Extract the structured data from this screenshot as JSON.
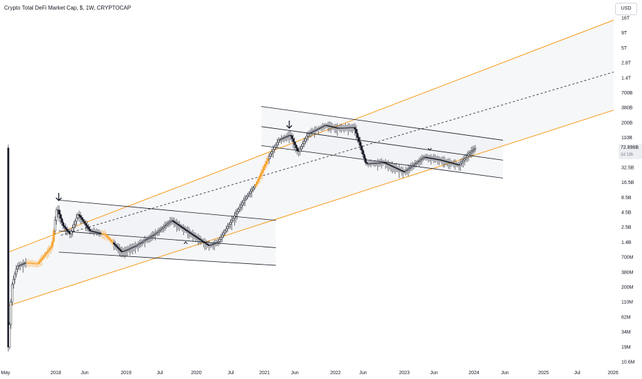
{
  "header": {
    "title": "Crypto Total DeFi Market Cap, $, 1W, CRYPTOCAP",
    "currency_button": "USD"
  },
  "price_label": {
    "value": "72.896B",
    "countdown": "2d 13h"
  },
  "colors": {
    "channel": "#f7a128",
    "bar": "#131722",
    "band_fill": "#eef0f4",
    "highlight": "#f7a128"
  },
  "chart_data": {
    "type": "candlestick",
    "title": "Crypto Total DeFi Market Cap, $, 1W, CRYPTOCAP",
    "y_scale": "log",
    "y_tick_labels": [
      "16T",
      "9T",
      "5T",
      "2.8T",
      "1.4T",
      "700B",
      "380B",
      "200B",
      "110B",
      "62.5B",
      "32.5B",
      "16.5B",
      "8.5B",
      "4.5B",
      "2.5B",
      "1.4B",
      "700M",
      "380M",
      "200M",
      "110M",
      "62M",
      "34M",
      "19M",
      "10.6M"
    ],
    "x_tick_labels": [
      "May",
      "2018",
      "Jun",
      "2019",
      "Jul",
      "2020",
      "Jul",
      "2021",
      "Jun",
      "2022",
      "Jun",
      "2023",
      "Jun",
      "2024",
      "Jun",
      "2025",
      "Jul",
      "2026"
    ],
    "last_value": "72.896B",
    "price_series": [
      [
        "2017-05-01",
        0.02
      ],
      [
        "2017-05-20",
        0.25
      ],
      [
        "2017-06-15",
        0.55
      ],
      [
        "2017-08-01",
        0.65
      ],
      [
        "2017-10-01",
        0.62
      ],
      [
        "2017-12-15",
        1.3
      ],
      [
        "2018-01-10",
        6.4
      ],
      [
        "2018-02-10",
        3.0
      ],
      [
        "2018-03-20",
        2.1
      ],
      [
        "2018-05-01",
        4.8
      ],
      [
        "2018-07-01",
        2.4
      ],
      [
        "2018-09-15",
        2.1
      ],
      [
        "2018-12-15",
        1.0
      ],
      [
        "2019-03-01",
        1.3
      ],
      [
        "2019-06-15",
        2.2
      ],
      [
        "2019-09-01",
        3.7
      ],
      [
        "2019-12-15",
        2.1
      ],
      [
        "2020-03-15",
        1.3
      ],
      [
        "2020-05-01",
        1.5
      ],
      [
        "2020-07-15",
        3.8
      ],
      [
        "2020-09-15",
        8.5
      ],
      [
        "2020-11-15",
        16.0
      ],
      [
        "2021-01-15",
        45.0
      ],
      [
        "2021-03-15",
        100.0
      ],
      [
        "2021-05-15",
        125.0
      ],
      [
        "2021-06-25",
        60.0
      ],
      [
        "2021-08-15",
        130.0
      ],
      [
        "2021-11-15",
        185.0
      ],
      [
        "2022-01-15",
        165.0
      ],
      [
        "2022-04-15",
        170.0
      ],
      [
        "2022-06-15",
        38.0
      ],
      [
        "2022-09-15",
        40.0
      ],
      [
        "2022-12-31",
        27.0
      ],
      [
        "2023-04-15",
        50.0
      ],
      [
        "2023-07-01",
        45.0
      ],
      [
        "2023-10-15",
        36.0
      ],
      [
        "2023-12-15",
        62.0
      ],
      [
        "2024-01-10",
        72.896
      ]
    ],
    "annotations": [
      {
        "type": "arrow-down",
        "date": "2018-01-20"
      },
      {
        "type": "arrow-down",
        "date": "2021-05-10"
      },
      {
        "type": "caret-up",
        "date": "2019-11-15"
      },
      {
        "type": "caret-down",
        "date": "2023-05-15"
      }
    ],
    "channels": [
      {
        "kind": "outer-upper",
        "from": [
          "2017-05-01",
          1.0
        ],
        "to": [
          "2026-01-01",
          14000
        ]
      },
      {
        "kind": "outer-mid-dashed",
        "from": [
          "2018-02-01",
          2.0
        ],
        "to": [
          "2026-01-01",
          1650
        ]
      },
      {
        "kind": "outer-lower",
        "from": [
          "2017-05-01",
          0.11
        ],
        "to": [
          "2026-01-01",
          345
        ]
      },
      {
        "kind": "cycle1-top",
        "from": [
          "2018-01-20",
          8.5
        ],
        "to": [
          "2021-03-01",
          3.7
        ]
      },
      {
        "kind": "cycle1-mid",
        "from": [
          "2018-01-20",
          2.4
        ],
        "to": [
          "2021-03-01",
          1.2
        ]
      },
      {
        "kind": "cycle1-bottom",
        "from": [
          "2018-01-20",
          1.0
        ],
        "to": [
          "2021-03-01",
          0.58
        ]
      },
      {
        "kind": "cycle2-top",
        "from": [
          "2020-12-15",
          400
        ],
        "to": [
          "2024-06-01",
          100
        ]
      },
      {
        "kind": "cycle2-mid",
        "from": [
          "2020-12-15",
          175
        ],
        "to": [
          "2024-06-01",
          44
        ]
      },
      {
        "kind": "cycle2-bottom",
        "from": [
          "2020-12-15",
          80
        ],
        "to": [
          "2024-06-01",
          21
        ]
      }
    ]
  }
}
